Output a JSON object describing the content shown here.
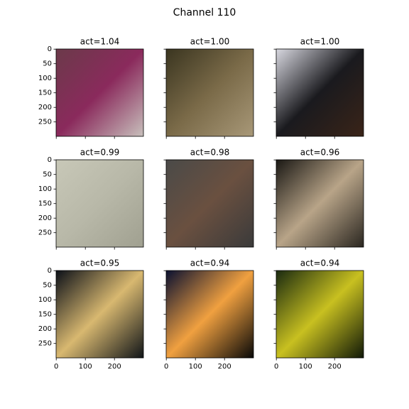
{
  "title": "Channel 110",
  "xlim": [
    -0.5,
    299.5
  ],
  "ylim": [
    299.5,
    -0.5
  ],
  "xticks": [
    0,
    100,
    200
  ],
  "yticks": [
    0,
    50,
    100,
    150,
    200,
    250
  ],
  "panels": [
    {
      "title": "act=1.04",
      "colors": [
        "#6b3a4a",
        "#8a2a5c",
        "#c8c0bc"
      ]
    },
    {
      "title": "act=1.00",
      "colors": [
        "#3a3520",
        "#7a6a48",
        "#a89878"
      ]
    },
    {
      "title": "act=1.00",
      "colors": [
        "#d8d8e0",
        "#1a1a1e",
        "#3a2418"
      ]
    },
    {
      "title": "act=0.99",
      "colors": [
        "#c8c8b8",
        "#b8b8a8",
        "#a0a090"
      ]
    },
    {
      "title": "act=0.98",
      "colors": [
        "#4a4a48",
        "#6a5040",
        "#3a3a3a"
      ]
    },
    {
      "title": "act=0.96",
      "colors": [
        "#1a1814",
        "#b8a488",
        "#2a2620"
      ]
    },
    {
      "title": "act=0.95",
      "colors": [
        "#0c1018",
        "#d8b870",
        "#101418"
      ]
    },
    {
      "title": "act=0.94",
      "colors": [
        "#0a1030",
        "#f0a040",
        "#080808"
      ]
    },
    {
      "title": "act=0.94",
      "colors": [
        "#1a2a10",
        "#c8c020",
        "#101808"
      ]
    }
  ]
}
